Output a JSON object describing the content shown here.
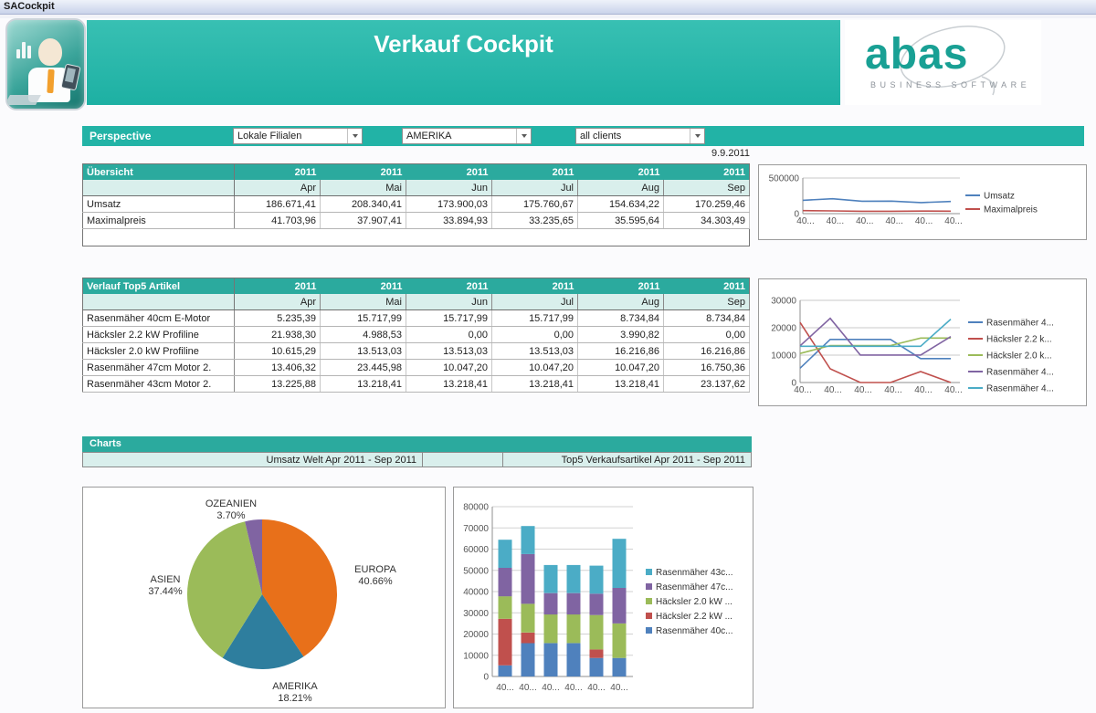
{
  "window": {
    "title": "SACockpit"
  },
  "header": {
    "title": "Verkauf Cockpit",
    "logo": {
      "name": "abas",
      "subtitle": "BUSINESS SOFTWARE"
    }
  },
  "perspective": {
    "label": "Perspective",
    "dropdowns": [
      {
        "value": "Lokale Filialen"
      },
      {
        "value": "AMERIKA"
      },
      {
        "value": "all clients"
      }
    ],
    "date": "9.9.2011"
  },
  "uebersicht_table": {
    "title": "Übersicht",
    "years": [
      "2011",
      "2011",
      "2011",
      "2011",
      "2011",
      "2011"
    ],
    "months": [
      "Apr",
      "Mai",
      "Jun",
      "Jul",
      "Aug",
      "Sep"
    ],
    "rows": [
      {
        "label": "Umsatz",
        "values": [
          "186.671,41",
          "208.340,41",
          "173.900,03",
          "175.760,67",
          "154.634,22",
          "170.259,46"
        ]
      },
      {
        "label": "Maximalpreis",
        "values": [
          "41.703,96",
          "37.907,41",
          "33.894,93",
          "33.235,65",
          "35.595,64",
          "34.303,49"
        ]
      }
    ]
  },
  "verlauf_table": {
    "title": "Verlauf Top5 Artikel",
    "years": [
      "2011",
      "2011",
      "2011",
      "2011",
      "2011",
      "2011"
    ],
    "months": [
      "Apr",
      "Mai",
      "Jun",
      "Jul",
      "Aug",
      "Sep"
    ],
    "rows": [
      {
        "label": "Rasenmäher 40cm E-Motor",
        "values": [
          "5.235,39",
          "15.717,99",
          "15.717,99",
          "15.717,99",
          "8.734,84",
          "8.734,84"
        ]
      },
      {
        "label": "Häcksler 2.2 kW Profiline",
        "values": [
          "21.938,30",
          "4.988,53",
          "0,00",
          "0,00",
          "3.990,82",
          "0,00"
        ]
      },
      {
        "label": "Häcksler 2.0 kW Profiline",
        "values": [
          "10.615,29",
          "13.513,03",
          "13.513,03",
          "13.513,03",
          "16.216,86",
          "16.216,86"
        ]
      },
      {
        "label": "Rasenmäher 47cm Motor 2.",
        "values": [
          "13.406,32",
          "23.445,98",
          "10.047,20",
          "10.047,20",
          "10.047,20",
          "16.750,36"
        ]
      },
      {
        "label": "Rasenmäher 43cm Motor 2.",
        "values": [
          "13.225,88",
          "13.218,41",
          "13.218,41",
          "13.218,41",
          "13.218,41",
          "23.137,62"
        ]
      }
    ]
  },
  "charts_section": {
    "title": "Charts",
    "left_title": "Umsatz Welt Apr 2011 - Sep 2011",
    "right_title": "Top5 Verkaufsartikel Apr 2011 - Sep 2011"
  },
  "colors": {
    "teal_banner": "#22B3A6",
    "teal_table_header": "#2BAA9E",
    "teal_subheader": "#D9EFEC"
  },
  "chart_data": [
    {
      "id": "umsatz_line",
      "type": "line",
      "x": [
        "40...",
        "40...",
        "40...",
        "40...",
        "40...",
        "40..."
      ],
      "ylim": [
        0,
        500000
      ],
      "yticks": [
        0,
        500000
      ],
      "legend_position": "right",
      "grid": true,
      "series": [
        {
          "name": "Umsatz",
          "legend_label": "Umsatz",
          "color": "#4F81BD",
          "values": [
            186671.41,
            208340.41,
            173900.03,
            175760.67,
            154634.22,
            170259.46
          ]
        },
        {
          "name": "Maximalpreis",
          "legend_label": "Maximalpreis",
          "color": "#C0504D",
          "values": [
            41703.96,
            37907.41,
            33894.93,
            33235.65,
            35595.64,
            34303.49
          ]
        }
      ]
    },
    {
      "id": "top5_line",
      "type": "line",
      "x": [
        "40...",
        "40...",
        "40...",
        "40...",
        "40...",
        "40..."
      ],
      "ylim": [
        0,
        30000
      ],
      "yticks": [
        0,
        10000,
        20000,
        30000
      ],
      "legend_position": "right",
      "grid": true,
      "series": [
        {
          "name": "Rasenmäher 40cm E-Motor",
          "legend_label": "Rasenmäher 4...",
          "color": "#4F81BD",
          "values": [
            5235.39,
            15717.99,
            15717.99,
            15717.99,
            8734.84,
            8734.84
          ]
        },
        {
          "name": "Häcksler 2.2 kW Profiline",
          "legend_label": "Häcksler 2.2 k...",
          "color": "#C0504D",
          "values": [
            21938.3,
            4988.53,
            0,
            0,
            3990.82,
            0
          ]
        },
        {
          "name": "Häcksler 2.0 kW Profiline",
          "legend_label": "Häcksler 2.0 k...",
          "color": "#9BBB59",
          "values": [
            10615.29,
            13513.03,
            13513.03,
            13513.03,
            16216.86,
            16216.86
          ]
        },
        {
          "name": "Rasenmäher 47cm Motor 2.",
          "legend_label": "Rasenmäher 4...",
          "color": "#8064A2",
          "values": [
            13406.32,
            23445.98,
            10047.2,
            10047.2,
            10047.2,
            16750.36
          ]
        },
        {
          "name": "Rasenmäher 43cm Motor 2.",
          "legend_label": "Rasenmäher 4...",
          "color": "#4BACC6",
          "values": [
            13225.88,
            13218.41,
            13218.41,
            13218.41,
            13218.41,
            23137.62
          ]
        }
      ]
    },
    {
      "id": "world_pie",
      "type": "pie",
      "title": "Umsatz Welt Apr 2011 - Sep 2011",
      "slices": [
        {
          "label": "EUROPA",
          "pct_label": "40.66%",
          "value": 40.66,
          "color": "#E8701A"
        },
        {
          "label": "AMERIKA",
          "pct_label": "18.21%",
          "value": 18.21,
          "color": "#2E7E9E"
        },
        {
          "label": "ASIEN",
          "pct_label": "37.44%",
          "value": 37.44,
          "color": "#9BBB59"
        },
        {
          "label": "OZEANIEN",
          "pct_label": "3.70%",
          "value": 3.7,
          "color": "#8064A2"
        }
      ]
    },
    {
      "id": "top5_bar",
      "type": "bar",
      "stacked": true,
      "title": "Top5 Verkaufsartikel Apr 2011 - Sep 2011",
      "x": [
        "40...",
        "40...",
        "40...",
        "40...",
        "40...",
        "40..."
      ],
      "ylim": [
        0,
        80000
      ],
      "ytick_step": 10000,
      "legend_position": "right",
      "legend_order": "reversed",
      "grid": true,
      "series": [
        {
          "name": "Rasenmäher 40cm E-Motor",
          "legend_label": "Rasenmäher 40c...",
          "color": "#4F81BD",
          "values": [
            5235.39,
            15717.99,
            15717.99,
            15717.99,
            8734.84,
            8734.84
          ]
        },
        {
          "name": "Häcksler 2.2 kW Profiline",
          "legend_label": "Häcksler 2.2 kW ...",
          "color": "#C0504D",
          "values": [
            21938.3,
            4988.53,
            0,
            0,
            3990.82,
            0
          ]
        },
        {
          "name": "Häcksler 2.0 kW Profiline",
          "legend_label": "Häcksler 2.0 kW ...",
          "color": "#9BBB59",
          "values": [
            10615.29,
            13513.03,
            13513.03,
            13513.03,
            16216.86,
            16216.86
          ]
        },
        {
          "name": "Rasenmäher 47cm Motor 2.",
          "legend_label": "Rasenmäher 47c...",
          "color": "#8064A2",
          "values": [
            13406.32,
            23445.98,
            10047.2,
            10047.2,
            10047.2,
            16750.36
          ]
        },
        {
          "name": "Rasenmäher 43cm Motor 2.",
          "legend_label": "Rasenmäher 43c...",
          "color": "#4BACC6",
          "values": [
            13225.88,
            13218.41,
            13218.41,
            13218.41,
            13218.41,
            23137.62
          ]
        }
      ]
    }
  ]
}
